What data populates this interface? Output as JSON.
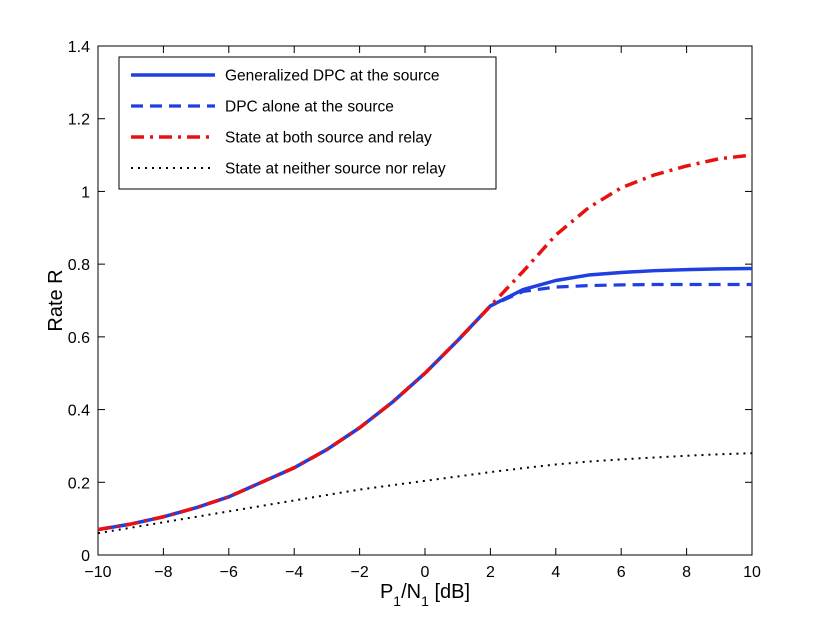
{
  "chart_data": {
    "type": "line",
    "title": "",
    "xlabel": "P₁/N₁ [dB]",
    "xlabel_parts": {
      "p": "P",
      "sub1": "1",
      "slash": "/N",
      "sub2": "1",
      "unit": " [dB]"
    },
    "ylabel": "Rate R",
    "xlim": [
      -10,
      10
    ],
    "ylim": [
      0,
      1.4
    ],
    "x_ticks": [
      -10,
      -8,
      -6,
      -4,
      -2,
      0,
      2,
      4,
      6,
      8,
      10
    ],
    "x_tick_labels": [
      "−10",
      "−8",
      "−6",
      "−4",
      "−2",
      "0",
      "2",
      "4",
      "6",
      "8",
      "10"
    ],
    "y_ticks": [
      0,
      0.2,
      0.4,
      0.6,
      0.8,
      1,
      1.2,
      1.4
    ],
    "y_tick_labels": [
      "0",
      "0.2",
      "0.4",
      "0.6",
      "0.8",
      "1",
      "1.2",
      "1.4"
    ],
    "grid": false,
    "legend_position": "top-left",
    "x": [
      -10,
      -9,
      -8,
      -7,
      -6,
      -5,
      -4,
      -3,
      -2,
      -1,
      0,
      1,
      2,
      3,
      4,
      5,
      6,
      7,
      8,
      9,
      10
    ],
    "series": [
      {
        "name": "Generalized DPC at the source",
        "color": "#1f3fe0",
        "style": "solid",
        "values": [
          0.07,
          0.085,
          0.105,
          0.13,
          0.16,
          0.2,
          0.24,
          0.29,
          0.35,
          0.42,
          0.5,
          0.59,
          0.685,
          0.73,
          0.755,
          0.77,
          0.777,
          0.782,
          0.785,
          0.787,
          0.788
        ]
      },
      {
        "name": "DPC alone at the source",
        "color": "#1f3fe0",
        "style": "dashed",
        "values": [
          0.07,
          0.085,
          0.105,
          0.13,
          0.16,
          0.2,
          0.24,
          0.29,
          0.35,
          0.42,
          0.5,
          0.59,
          0.685,
          0.725,
          0.737,
          0.741,
          0.743,
          0.744,
          0.744,
          0.744,
          0.744
        ]
      },
      {
        "name": "State at both source and relay",
        "color": "#e81010",
        "style": "dashdot",
        "values": [
          0.07,
          0.085,
          0.105,
          0.13,
          0.16,
          0.2,
          0.24,
          0.29,
          0.35,
          0.42,
          0.5,
          0.59,
          0.685,
          0.78,
          0.88,
          0.955,
          1.01,
          1.045,
          1.07,
          1.09,
          1.1
        ]
      },
      {
        "name": "State at neither source nor relay",
        "color": "#000000",
        "style": "dotted",
        "values": [
          0.06,
          0.075,
          0.09,
          0.105,
          0.12,
          0.135,
          0.15,
          0.165,
          0.18,
          0.192,
          0.204,
          0.216,
          0.228,
          0.239,
          0.249,
          0.257,
          0.263,
          0.268,
          0.273,
          0.277,
          0.28
        ]
      }
    ]
  }
}
